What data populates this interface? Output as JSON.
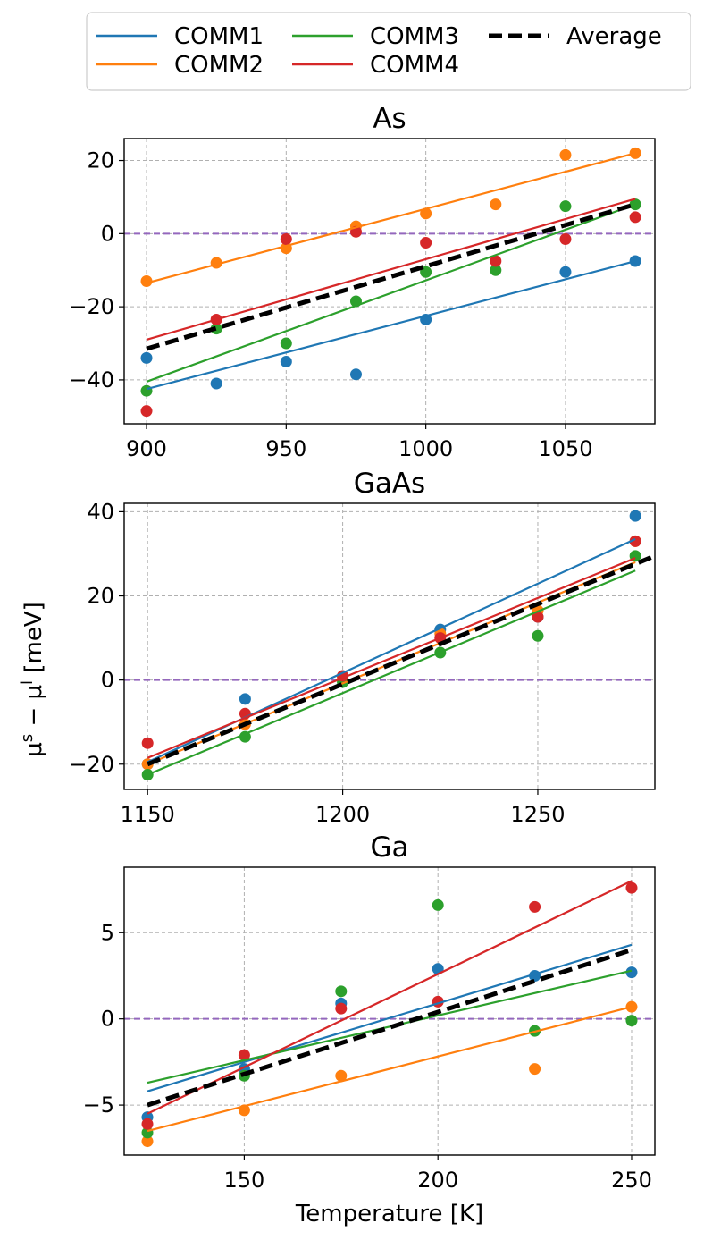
{
  "figure": {
    "xlabel": "Temperature [K]",
    "ylabel": "μs − μl [meV]",
    "ylabel_parts": {
      "mu": "μ",
      "s": "s",
      "minus": " − ",
      "l": "l",
      "unit": " [meV]"
    }
  },
  "legend": {
    "location": "top-center",
    "entries": [
      {
        "label": "COMM1",
        "color": "#1f77b4",
        "style": "solid"
      },
      {
        "label": "COMM2",
        "color": "#ff7f0e",
        "style": "solid"
      },
      {
        "label": "COMM3",
        "color": "#2ca02c",
        "style": "solid"
      },
      {
        "label": "COMM4",
        "color": "#d62728",
        "style": "solid"
      },
      {
        "label": "Average",
        "color": "#000000",
        "style": "dashed"
      }
    ]
  },
  "chart_data": [
    {
      "type": "scatter",
      "title": "As",
      "xlabel": "",
      "ylabel": "",
      "xlim": [
        892,
        1082
      ],
      "ylim": [
        -52,
        26
      ],
      "xticks": [
        900,
        950,
        1000,
        1050
      ],
      "yticks": [
        20,
        0,
        -20,
        -40
      ],
      "ytick_labels": [
        "20",
        "0",
        "−20",
        "−40"
      ],
      "grid": true,
      "reference_line": {
        "y": 0,
        "color": "#9467bd",
        "style": "dashed"
      },
      "x": [
        900,
        925,
        950,
        975,
        1000,
        1025,
        1050,
        1075
      ],
      "series": [
        {
          "name": "COMM1",
          "color": "#1f77b4",
          "points": [
            -34,
            -41,
            -35,
            -38.5,
            -23.5,
            null,
            -10.5,
            -7.5
          ],
          "fit": [
            [
              900,
              -42.5
            ],
            [
              1075,
              -7.5
            ]
          ]
        },
        {
          "name": "COMM2",
          "color": "#ff7f0e",
          "points": [
            -13,
            -8,
            -4,
            2,
            5.5,
            8,
            21.5,
            22
          ],
          "fit": [
            [
              900,
              -13.5
            ],
            [
              1075,
              22
            ]
          ]
        },
        {
          "name": "COMM3",
          "color": "#2ca02c",
          "points": [
            -43,
            -26,
            -30,
            -18.5,
            -10.5,
            -10,
            7.5,
            8
          ],
          "fit": [
            [
              900,
              -40.5
            ],
            [
              1075,
              8
            ]
          ]
        },
        {
          "name": "COMM4",
          "color": "#d62728",
          "points": [
            -48.5,
            -23.5,
            -1.5,
            0.5,
            -2.5,
            -7.5,
            -1.5,
            4.5
          ],
          "fit": [
            [
              900,
              -29
            ],
            [
              1075,
              9.5
            ]
          ]
        }
      ],
      "average": [
        [
          900,
          -31.5
        ],
        [
          1075,
          8
        ]
      ]
    },
    {
      "type": "scatter",
      "title": "GaAs",
      "xlabel": "",
      "ylabel": "μs − μl [meV]",
      "xlim": [
        1144,
        1280
      ],
      "ylim": [
        -26,
        42
      ],
      "xticks": [
        1150,
        1200,
        1250
      ],
      "yticks": [
        40,
        20,
        0,
        -20
      ],
      "ytick_labels": [
        "40",
        "20",
        "0",
        "−20"
      ],
      "grid": true,
      "reference_line": {
        "y": 0,
        "color": "#9467bd",
        "style": "dashed"
      },
      "x": [
        1150,
        1175,
        1200,
        1225,
        1250,
        1275
      ],
      "series": [
        {
          "name": "COMM1",
          "color": "#1f77b4",
          "points": [
            -20,
            -4.5,
            0,
            12,
            15,
            39
          ],
          "fit": [
            [
              1150,
              -19.5
            ],
            [
              1275,
              33.5
            ]
          ]
        },
        {
          "name": "COMM2",
          "color": "#ff7f0e",
          "points": [
            -20,
            -10.5,
            0.5,
            11,
            16.5,
            33
          ],
          "fit": [
            [
              1150,
              -20
            ],
            [
              1275,
              28
            ]
          ]
        },
        {
          "name": "COMM3",
          "color": "#2ca02c",
          "points": [
            -22.5,
            -13.5,
            -0.5,
            6.5,
            10.5,
            29.5
          ],
          "fit": [
            [
              1150,
              -22.5
            ],
            [
              1275,
              26
            ]
          ]
        },
        {
          "name": "COMM4",
          "color": "#d62728",
          "points": [
            -15,
            -8,
            1,
            10,
            15,
            33
          ],
          "fit": [
            [
              1150,
              -18.5
            ],
            [
              1275,
              29
            ]
          ]
        }
      ],
      "average": [
        [
          1150,
          -20
        ],
        [
          1280,
          29.5
        ]
      ]
    },
    {
      "type": "scatter",
      "title": "Ga",
      "xlabel": "Temperature [K]",
      "ylabel": "",
      "xlim": [
        119,
        256
      ],
      "ylim": [
        -7.9,
        8.8
      ],
      "xticks": [
        150,
        200,
        250
      ],
      "yticks": [
        5,
        0,
        -5
      ],
      "ytick_labels": [
        "5",
        "0",
        "−5"
      ],
      "grid": true,
      "reference_line": {
        "y": 0,
        "color": "#9467bd",
        "style": "dashed"
      },
      "x": [
        125,
        150,
        175,
        200,
        225,
        250
      ],
      "series": [
        {
          "name": "COMM1",
          "color": "#1f77b4",
          "points": [
            -5.7,
            -2.9,
            0.9,
            2.9,
            2.5,
            2.7
          ],
          "fit": [
            [
              125,
              -4.2
            ],
            [
              250,
              4.3
            ]
          ]
        },
        {
          "name": "COMM2",
          "color": "#ff7f0e",
          "points": [
            -7.1,
            -5.3,
            -3.3,
            null,
            -2.9,
            0.7
          ],
          "fit": [
            [
              125,
              -6.5
            ],
            [
              250,
              0.7
            ]
          ]
        },
        {
          "name": "COMM3",
          "color": "#2ca02c",
          "points": [
            -6.6,
            -3.3,
            1.6,
            6.6,
            -0.7,
            -0.1
          ],
          "fit": [
            [
              125,
              -3.7
            ],
            [
              250,
              2.8
            ]
          ]
        },
        {
          "name": "COMM4",
          "color": "#d62728",
          "points": [
            -6.1,
            -2.1,
            0.6,
            1,
            6.5,
            7.6
          ],
          "fit": [
            [
              125,
              -5.5
            ],
            [
              250,
              8
            ]
          ]
        }
      ],
      "average": [
        [
          125,
          -5
        ],
        [
          250,
          4
        ]
      ]
    }
  ]
}
